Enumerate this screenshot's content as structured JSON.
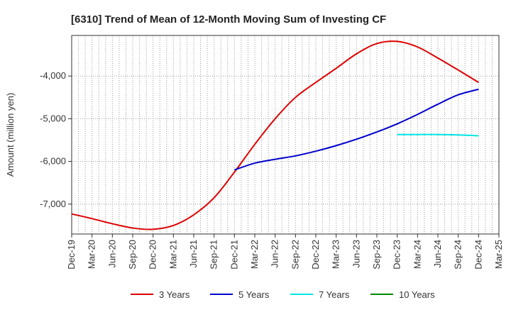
{
  "chart_data": {
    "type": "line",
    "title": "[6310]  Trend of Mean of 12-Month Moving Sum of Investing CF",
    "xlabel": "",
    "ylabel": "Amount (million yen)",
    "x_ticks": [
      "Dec-19",
      "Mar-20",
      "Jun-20",
      "Sep-20",
      "Dec-20",
      "Mar-21",
      "Jun-21",
      "Sep-21",
      "Dec-21",
      "Mar-22",
      "Jun-22",
      "Sep-22",
      "Dec-22",
      "Mar-23",
      "Jun-23",
      "Sep-23",
      "Dec-23",
      "Mar-24",
      "Jun-24",
      "Sep-24",
      "Dec-24",
      "Mar-25"
    ],
    "y_ticks": [
      -7000,
      -6000,
      -5000,
      -4000
    ],
    "y_tick_labels": [
      "-7,000",
      "-6,000",
      "-5,000",
      "-4,000"
    ],
    "ylim": [
      -7700,
      -3050
    ],
    "grid": true,
    "legend_position": "bottom",
    "series": [
      {
        "name": "3 Years",
        "color": "#dd0000",
        "points": [
          [
            "Dec-19",
            -7230
          ],
          [
            "Mar-20",
            -7340
          ],
          [
            "Jun-20",
            -7460
          ],
          [
            "Sep-20",
            -7560
          ],
          [
            "Dec-20",
            -7590
          ],
          [
            "Mar-21",
            -7500
          ],
          [
            "Jun-21",
            -7250
          ],
          [
            "Sep-21",
            -6850
          ],
          [
            "Dec-21",
            -6250
          ],
          [
            "Mar-22",
            -5600
          ],
          [
            "Jun-22",
            -5000
          ],
          [
            "Sep-22",
            -4500
          ],
          [
            "Dec-22",
            -4150
          ],
          [
            "Mar-23",
            -3820
          ],
          [
            "Jun-23",
            -3480
          ],
          [
            "Sep-23",
            -3240
          ],
          [
            "Dec-23",
            -3190
          ],
          [
            "Mar-24",
            -3320
          ],
          [
            "Jun-24",
            -3580
          ],
          [
            "Sep-24",
            -3860
          ],
          [
            "Dec-24",
            -4150
          ]
        ]
      },
      {
        "name": "5 Years",
        "color": "#0000cc",
        "points": [
          [
            "Dec-21",
            -6200
          ],
          [
            "Mar-22",
            -6040
          ],
          [
            "Jun-22",
            -5950
          ],
          [
            "Sep-22",
            -5870
          ],
          [
            "Dec-22",
            -5760
          ],
          [
            "Mar-23",
            -5630
          ],
          [
            "Jun-23",
            -5480
          ],
          [
            "Sep-23",
            -5310
          ],
          [
            "Dec-23",
            -5120
          ],
          [
            "Mar-24",
            -4900
          ],
          [
            "Jun-24",
            -4660
          ],
          [
            "Sep-24",
            -4440
          ],
          [
            "Dec-24",
            -4310
          ]
        ]
      },
      {
        "name": "7 Years",
        "color": "#00e5e5",
        "points": [
          [
            "Dec-23",
            -5370
          ],
          [
            "Mar-24",
            -5370
          ],
          [
            "Jun-24",
            -5370
          ],
          [
            "Sep-24",
            -5380
          ],
          [
            "Dec-24",
            -5400
          ]
        ]
      },
      {
        "name": "10 Years",
        "color": "#008800",
        "points": []
      }
    ]
  }
}
